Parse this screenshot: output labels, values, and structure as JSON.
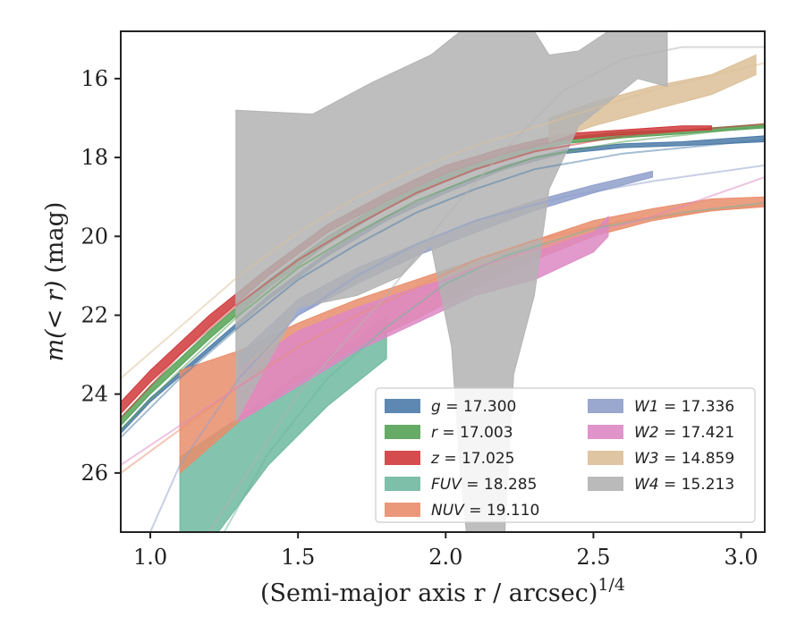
{
  "chart_data": {
    "type": "area",
    "xlabel": "(Semi-major axis r / arcsec)",
    "xlabel_exponent": "1/4",
    "ylabel_prefix": "m(< r)",
    "ylabel_suffix": "(mag)",
    "xlim": [
      0.9,
      3.08
    ],
    "ylim": [
      27.5,
      14.8
    ],
    "y_inverted": true,
    "xticks": [
      1.0,
      1.5,
      2.0,
      2.5,
      3.0
    ],
    "xtick_labels": [
      "1.0",
      "1.5",
      "2.0",
      "2.5",
      "3.0"
    ],
    "yticks": [
      16,
      18,
      20,
      22,
      24,
      26
    ],
    "ytick_labels": [
      "16",
      "18",
      "20",
      "22",
      "24",
      "26"
    ],
    "grid": false,
    "legend_position": "lower-right",
    "series": [
      {
        "name": "g",
        "label": "g = 17.300",
        "color": "#4c7ba8",
        "upper": [
          [
            0.9,
            24.9
          ],
          [
            1.0,
            24.1
          ],
          [
            1.2,
            22.8
          ],
          [
            1.4,
            21.5
          ],
          [
            1.6,
            20.4
          ],
          [
            1.8,
            19.5
          ],
          [
            2.0,
            18.8
          ],
          [
            2.2,
            18.2
          ],
          [
            2.4,
            17.8
          ],
          [
            2.6,
            17.65
          ],
          [
            2.8,
            17.6
          ],
          [
            3.08,
            17.45
          ]
        ],
        "lower": [
          [
            0.9,
            25.0
          ],
          [
            1.0,
            24.2
          ],
          [
            1.2,
            22.9
          ],
          [
            1.4,
            21.6
          ],
          [
            1.6,
            20.5
          ],
          [
            1.8,
            19.6
          ],
          [
            2.0,
            18.9
          ],
          [
            2.2,
            18.3
          ],
          [
            2.4,
            17.9
          ],
          [
            2.6,
            17.75
          ],
          [
            2.8,
            17.7
          ],
          [
            3.08,
            17.6
          ]
        ],
        "model": [
          [
            0.9,
            25.1
          ],
          [
            1.1,
            23.6
          ],
          [
            1.3,
            22.3
          ],
          [
            1.5,
            21.1
          ],
          [
            1.7,
            20.2
          ],
          [
            1.9,
            19.4
          ],
          [
            2.1,
            18.8
          ],
          [
            2.3,
            18.3
          ],
          [
            2.6,
            17.9
          ],
          [
            3.08,
            17.55
          ]
        ]
      },
      {
        "name": "r",
        "label": "r = 17.003",
        "color": "#55a255",
        "upper": [
          [
            0.9,
            24.6
          ],
          [
            1.0,
            23.8
          ],
          [
            1.2,
            22.4
          ],
          [
            1.4,
            21.1
          ],
          [
            1.6,
            20.0
          ],
          [
            1.8,
            19.1
          ],
          [
            2.0,
            18.4
          ],
          [
            2.2,
            17.9
          ],
          [
            2.4,
            17.5
          ],
          [
            2.6,
            17.35
          ],
          [
            2.8,
            17.3
          ],
          [
            3.08,
            17.15
          ]
        ],
        "lower": [
          [
            0.9,
            24.8
          ],
          [
            1.0,
            24.0
          ],
          [
            1.2,
            22.6
          ],
          [
            1.4,
            21.3
          ],
          [
            1.6,
            20.2
          ],
          [
            1.8,
            19.3
          ],
          [
            2.0,
            18.6
          ],
          [
            2.2,
            18.05
          ],
          [
            2.4,
            17.65
          ],
          [
            2.6,
            17.5
          ],
          [
            2.8,
            17.4
          ],
          [
            3.08,
            17.25
          ]
        ],
        "model": [
          [
            0.9,
            24.9
          ],
          [
            1.1,
            23.4
          ],
          [
            1.3,
            22.0
          ],
          [
            1.5,
            20.8
          ],
          [
            1.7,
            19.9
          ],
          [
            1.9,
            19.1
          ],
          [
            2.1,
            18.5
          ],
          [
            2.3,
            18.0
          ],
          [
            2.6,
            17.6
          ],
          [
            3.08,
            17.2
          ]
        ]
      },
      {
        "name": "z",
        "label": "z = 17.025",
        "color": "#d0393b",
        "upper": [
          [
            0.9,
            24.2
          ],
          [
            1.0,
            23.4
          ],
          [
            1.2,
            22.0
          ],
          [
            1.4,
            20.8
          ],
          [
            1.6,
            19.7
          ],
          [
            1.8,
            18.9
          ],
          [
            2.0,
            18.2
          ],
          [
            2.2,
            17.75
          ],
          [
            2.4,
            17.4
          ],
          [
            2.6,
            17.3
          ],
          [
            2.8,
            17.2
          ],
          [
            2.9,
            17.2
          ]
        ],
        "lower": [
          [
            0.9,
            24.5
          ],
          [
            1.0,
            23.7
          ],
          [
            1.2,
            22.3
          ],
          [
            1.4,
            21.0
          ],
          [
            1.6,
            19.9
          ],
          [
            1.8,
            19.1
          ],
          [
            2.0,
            18.4
          ],
          [
            2.2,
            17.9
          ],
          [
            2.4,
            17.55
          ],
          [
            2.6,
            17.42
          ],
          [
            2.8,
            17.33
          ],
          [
            2.9,
            17.3
          ]
        ],
        "model": [
          [
            0.9,
            24.6
          ],
          [
            1.1,
            23.0
          ],
          [
            1.3,
            21.7
          ],
          [
            1.5,
            20.6
          ],
          [
            1.7,
            19.7
          ],
          [
            1.9,
            18.9
          ],
          [
            2.1,
            18.3
          ],
          [
            2.3,
            17.85
          ],
          [
            2.6,
            17.45
          ],
          [
            3.08,
            17.15
          ]
        ]
      },
      {
        "name": "FUV",
        "label": "FUV = 18.285",
        "color": "#6fb89f",
        "upper": [
          [
            1.1,
            25.6
          ],
          [
            1.3,
            24.6
          ],
          [
            1.5,
            23.5
          ],
          [
            1.7,
            22.6
          ],
          [
            1.8,
            22.0
          ]
        ],
        "lower": [
          [
            1.1,
            27.5
          ],
          [
            1.23,
            27.5
          ],
          [
            1.4,
            25.8
          ],
          [
            1.6,
            24.3
          ],
          [
            1.8,
            23.1
          ]
        ],
        "model": [
          [
            1.25,
            27.5
          ],
          [
            1.4,
            25.5
          ],
          [
            1.6,
            23.6
          ],
          [
            1.8,
            22.3
          ],
          [
            2.0,
            21.2
          ],
          [
            2.2,
            20.5
          ],
          [
            2.5,
            19.8
          ],
          [
            2.8,
            19.4
          ],
          [
            3.08,
            19.15
          ]
        ]
      },
      {
        "name": "NUV",
        "label": "NUV = 19.110",
        "color": "#e98d6b",
        "upper": [
          [
            1.1,
            23.4
          ],
          [
            1.3,
            22.9
          ],
          [
            1.5,
            22.2
          ],
          [
            1.7,
            21.6
          ],
          [
            1.9,
            21.1
          ],
          [
            2.1,
            20.6
          ],
          [
            2.3,
            20.1
          ],
          [
            2.5,
            19.6
          ],
          [
            2.7,
            19.3
          ],
          [
            2.9,
            19.05
          ],
          [
            3.08,
            19.0
          ]
        ],
        "lower": [
          [
            1.1,
            26.0
          ],
          [
            1.3,
            24.7
          ],
          [
            1.5,
            23.7
          ],
          [
            1.7,
            22.8
          ],
          [
            1.9,
            22.1
          ],
          [
            2.1,
            21.3
          ],
          [
            2.3,
            20.6
          ],
          [
            2.5,
            20.0
          ],
          [
            2.7,
            19.6
          ],
          [
            2.9,
            19.35
          ],
          [
            3.08,
            19.25
          ]
        ],
        "model": [
          [
            0.9,
            26.0
          ],
          [
            1.1,
            24.9
          ],
          [
            1.3,
            23.8
          ],
          [
            1.5,
            22.8
          ],
          [
            1.7,
            22.0
          ],
          [
            1.9,
            21.3
          ],
          [
            2.1,
            20.6
          ],
          [
            2.3,
            20.1
          ],
          [
            2.6,
            19.6
          ],
          [
            3.08,
            19.2
          ]
        ]
      },
      {
        "name": "W1",
        "label": "W1 = 17.336",
        "color": "#8f9fcb",
        "upper": [
          [
            1.3,
            23.0
          ],
          [
            1.5,
            21.6
          ],
          [
            1.7,
            20.8
          ],
          [
            1.9,
            20.2
          ],
          [
            2.1,
            19.6
          ],
          [
            2.3,
            19.1
          ],
          [
            2.5,
            18.7
          ],
          [
            2.7,
            18.35
          ]
        ],
        "lower": [
          [
            1.3,
            23.4
          ],
          [
            1.5,
            22.0
          ],
          [
            1.7,
            21.2
          ],
          [
            1.9,
            20.5
          ],
          [
            2.1,
            19.9
          ],
          [
            2.3,
            19.35
          ],
          [
            2.5,
            18.9
          ],
          [
            2.7,
            18.5
          ]
        ],
        "model": [
          [
            1.0,
            27.5
          ],
          [
            1.1,
            25.8
          ],
          [
            1.3,
            23.6
          ],
          [
            1.5,
            22.0
          ],
          [
            1.7,
            21.0
          ],
          [
            1.9,
            20.2
          ],
          [
            2.1,
            19.6
          ],
          [
            2.4,
            19.0
          ],
          [
            2.7,
            18.6
          ],
          [
            3.08,
            18.2
          ]
        ]
      },
      {
        "name": "W2",
        "label": "W2 = 17.421",
        "color": "#dd88c4",
        "upper": [
          [
            1.3,
            23.4
          ],
          [
            1.5,
            22.4
          ],
          [
            1.7,
            21.8
          ],
          [
            1.9,
            21.3
          ],
          [
            2.1,
            20.9
          ],
          [
            2.3,
            20.4
          ],
          [
            2.5,
            19.9
          ],
          [
            2.55,
            19.5
          ]
        ],
        "lower": [
          [
            1.3,
            24.7
          ],
          [
            1.5,
            23.8
          ],
          [
            1.7,
            22.9
          ],
          [
            1.9,
            22.2
          ],
          [
            2.1,
            21.5
          ],
          [
            2.3,
            21.1
          ],
          [
            2.5,
            20.4
          ],
          [
            2.55,
            20.0
          ]
        ],
        "model": [
          [
            0.9,
            25.8
          ],
          [
            1.1,
            24.8
          ],
          [
            1.3,
            23.8
          ],
          [
            1.5,
            22.9
          ],
          [
            1.7,
            22.1
          ],
          [
            1.9,
            21.4
          ],
          [
            2.1,
            20.8
          ],
          [
            2.4,
            20.1
          ],
          [
            2.7,
            19.5
          ],
          [
            3.08,
            18.5
          ]
        ]
      },
      {
        "name": "W3",
        "label": "W3 = 14.859",
        "color": "#dcbf98",
        "upper": [
          [
            2.35,
            17.0
          ],
          [
            2.5,
            16.6
          ],
          [
            2.7,
            16.2
          ],
          [
            2.9,
            15.9
          ],
          [
            3.05,
            15.4
          ]
        ],
        "lower": [
          [
            2.35,
            17.6
          ],
          [
            2.5,
            17.2
          ],
          [
            2.7,
            16.8
          ],
          [
            2.9,
            16.4
          ],
          [
            3.05,
            15.9
          ]
        ],
        "model": [
          [
            0.9,
            23.6
          ],
          [
            1.1,
            22.3
          ],
          [
            1.3,
            21.0
          ],
          [
            1.5,
            19.9
          ],
          [
            1.7,
            19.0
          ],
          [
            1.9,
            18.3
          ],
          [
            2.1,
            17.7
          ],
          [
            2.4,
            17.0
          ],
          [
            2.7,
            16.3
          ],
          [
            3.08,
            15.6
          ]
        ]
      },
      {
        "name": "W4",
        "label": "W4 = 15.213",
        "color": "#b3b3b3",
        "upper": [
          [
            1.29,
            16.8
          ],
          [
            1.55,
            16.9
          ],
          [
            1.75,
            16.1
          ],
          [
            1.95,
            15.4
          ],
          [
            2.05,
            14.8
          ],
          [
            2.3,
            14.8
          ],
          [
            2.35,
            15.4
          ],
          [
            2.45,
            15.3
          ],
          [
            2.55,
            14.8
          ],
          [
            2.75,
            14.8
          ]
        ],
        "lower": [
          [
            1.29,
            24.7
          ],
          [
            1.5,
            21.8
          ],
          [
            1.7,
            21.5
          ],
          [
            1.85,
            21.0
          ],
          [
            1.95,
            20.2
          ],
          [
            2.02,
            22.8
          ],
          [
            2.05,
            26.0
          ],
          [
            2.07,
            27.5
          ],
          [
            2.2,
            27.5
          ],
          [
            2.23,
            23.5
          ],
          [
            2.3,
            21.5
          ],
          [
            2.35,
            18.8
          ],
          [
            2.45,
            17.2
          ],
          [
            2.55,
            16.6
          ],
          [
            2.65,
            16.0
          ],
          [
            2.75,
            16.2
          ]
        ],
        "model": [
          [
            1.2,
            27.5
          ],
          [
            1.5,
            24.0
          ],
          [
            1.8,
            21.5
          ],
          [
            2.0,
            19.5
          ],
          [
            2.2,
            17.8
          ],
          [
            2.4,
            16.3
          ],
          [
            2.6,
            15.5
          ],
          [
            2.8,
            15.2
          ],
          [
            3.08,
            15.2
          ]
        ]
      }
    ]
  }
}
